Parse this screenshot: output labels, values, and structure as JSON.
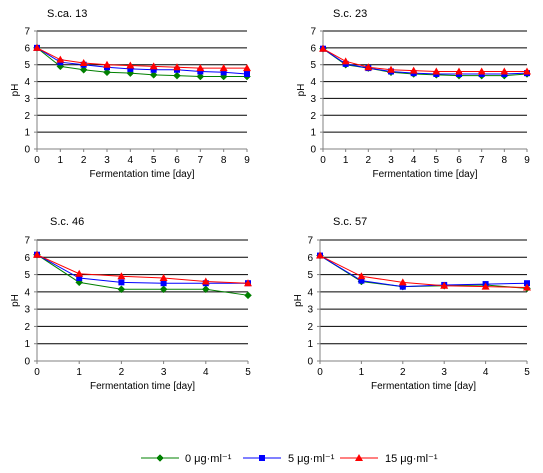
{
  "chart_data": [
    {
      "type": "line",
      "title": "S.ca. 13",
      "xlabel": "Fermentation time [day]",
      "ylabel": "pH",
      "xlim": [
        0,
        9
      ],
      "ylim": [
        0,
        7
      ],
      "x": [
        0,
        1,
        2,
        3,
        4,
        5,
        6,
        7,
        8,
        9
      ],
      "grid": true,
      "series": [
        {
          "name": "0 μg·ml⁻¹",
          "values": [
            6.0,
            4.9,
            4.7,
            4.55,
            4.5,
            4.4,
            4.35,
            4.3,
            4.3,
            4.3
          ]
        },
        {
          "name": "5 μg·ml⁻¹",
          "values": [
            6.0,
            5.15,
            5.0,
            4.85,
            4.75,
            4.7,
            4.7,
            4.6,
            4.55,
            4.45
          ]
        },
        {
          "name": "15 μg·ml⁻¹",
          "values": [
            6.0,
            5.3,
            5.1,
            5.0,
            4.95,
            4.9,
            4.85,
            4.8,
            4.8,
            4.8
          ]
        }
      ]
    },
    {
      "type": "line",
      "title": "S.c. 23",
      "xlabel": "Fermentation time [day]",
      "ylabel": "pH",
      "xlim": [
        0,
        9
      ],
      "ylim": [
        0,
        7
      ],
      "x": [
        0,
        1,
        2,
        3,
        4,
        5,
        6,
        7,
        8,
        9
      ],
      "grid": true,
      "series": [
        {
          "name": "0 μg·ml⁻¹",
          "values": [
            5.95,
            5.0,
            4.8,
            4.55,
            4.45,
            4.4,
            4.35,
            4.35,
            4.35,
            4.45
          ]
        },
        {
          "name": "5 μg·ml⁻¹",
          "values": [
            5.95,
            5.05,
            4.8,
            4.6,
            4.5,
            4.45,
            4.45,
            4.45,
            4.45,
            4.5
          ]
        },
        {
          "name": "15 μg·ml⁻¹",
          "values": [
            5.95,
            5.2,
            4.85,
            4.7,
            4.65,
            4.6,
            4.6,
            4.6,
            4.6,
            4.6
          ]
        }
      ]
    },
    {
      "type": "line",
      "title": "S.c. 46",
      "xlabel": "Fermentation time [day]",
      "ylabel": "pH",
      "xlim": [
        0,
        5
      ],
      "ylim": [
        0,
        7
      ],
      "x": [
        0,
        1,
        2,
        3,
        4,
        5
      ],
      "grid": true,
      "series": [
        {
          "name": "0 μg·ml⁻¹",
          "values": [
            6.15,
            4.55,
            4.15,
            4.15,
            4.15,
            3.8
          ]
        },
        {
          "name": "5 μg·ml⁻¹",
          "values": [
            6.15,
            4.8,
            4.55,
            4.5,
            4.5,
            4.5
          ]
        },
        {
          "name": "15 μg·ml⁻¹",
          "values": [
            6.15,
            5.05,
            4.9,
            4.8,
            4.6,
            4.5
          ]
        }
      ]
    },
    {
      "type": "line",
      "title": "S.c. 57",
      "xlabel": "Fermentation time [day]",
      "ylabel": "pH",
      "xlim": [
        0,
        5
      ],
      "ylim": [
        0,
        7
      ],
      "x": [
        0,
        1,
        2,
        3,
        4,
        5
      ],
      "grid": true,
      "series": [
        {
          "name": "0 μg·ml⁻¹",
          "values": [
            6.1,
            4.6,
            4.3,
            4.35,
            4.4,
            4.2
          ]
        },
        {
          "name": "5 μg·ml⁻¹",
          "values": [
            6.1,
            4.65,
            4.3,
            4.4,
            4.45,
            4.5
          ]
        },
        {
          "name": "15 μg·ml⁻¹",
          "values": [
            6.1,
            4.9,
            4.55,
            4.35,
            4.3,
            4.25
          ]
        }
      ]
    }
  ],
  "legend": {
    "placement": "bottom",
    "items": [
      {
        "label": "0 μg·ml⁻¹",
        "color": "#008000",
        "marker": "diamond"
      },
      {
        "label": "5 μg·ml⁻¹",
        "color": "#0000ff",
        "marker": "square"
      },
      {
        "label": "15 μg·ml⁻¹",
        "color": "#ff0000",
        "marker": "triangle"
      }
    ]
  },
  "colors": {
    "grid": "#000000",
    "axis": "#808080"
  }
}
